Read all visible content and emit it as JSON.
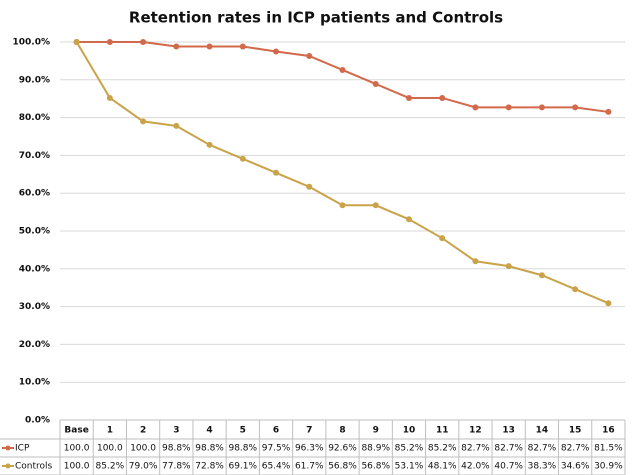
{
  "chart_data": {
    "type": "line",
    "title": "Retention rates in ICP patients and Controls",
    "categories": [
      "Base",
      "1",
      "2",
      "3",
      "4",
      "5",
      "6",
      "7",
      "8",
      "9",
      "10",
      "11",
      "12",
      "13",
      "14",
      "15",
      "16"
    ],
    "series": [
      {
        "name": "ICP",
        "color": "#d2694a",
        "values": [
          100.0,
          100.0,
          100.0,
          98.8,
          98.8,
          98.8,
          97.5,
          96.3,
          92.6,
          88.9,
          85.2,
          85.2,
          82.7,
          82.7,
          82.7,
          82.7,
          81.5
        ],
        "value_labels": [
          "100.0",
          "100.0",
          "100.0",
          "98.8%",
          "98.8%",
          "98.8%",
          "97.5%",
          "96.3%",
          "92.6%",
          "88.9%",
          "85.2%",
          "85.2%",
          "82.7%",
          "82.7%",
          "82.7%",
          "82.7%",
          "81.5%"
        ]
      },
      {
        "name": "Controls",
        "color": "#c9a349",
        "values": [
          100.0,
          85.2,
          79.0,
          77.8,
          72.8,
          69.1,
          65.4,
          61.7,
          56.8,
          56.8,
          53.1,
          48.1,
          42.0,
          40.7,
          38.3,
          34.6,
          30.9
        ],
        "value_labels": [
          "100.0",
          "85.2%",
          "79.0%",
          "77.8%",
          "72.8%",
          "69.1%",
          "65.4%",
          "61.7%",
          "56.8%",
          "56.8%",
          "53.1%",
          "48.1%",
          "42.0%",
          "40.7%",
          "38.3%",
          "34.6%",
          "30.9%"
        ]
      }
    ],
    "ylim": [
      0,
      100
    ],
    "yticks": [
      {
        "value": 0,
        "label": "0.0%"
      },
      {
        "value": 10,
        "label": "10.0%"
      },
      {
        "value": 20,
        "label": "20.0%"
      },
      {
        "value": 30,
        "label": "30.0%"
      },
      {
        "value": 40,
        "label": "40.0%"
      },
      {
        "value": 50,
        "label": "50.0%"
      },
      {
        "value": 60,
        "label": "60.0%"
      },
      {
        "value": 70,
        "label": "70.0%"
      },
      {
        "value": 80,
        "label": "80.0%"
      },
      {
        "value": 90,
        "label": "90.0%"
      },
      {
        "value": 100,
        "label": "100.0%"
      }
    ],
    "grid": true
  }
}
